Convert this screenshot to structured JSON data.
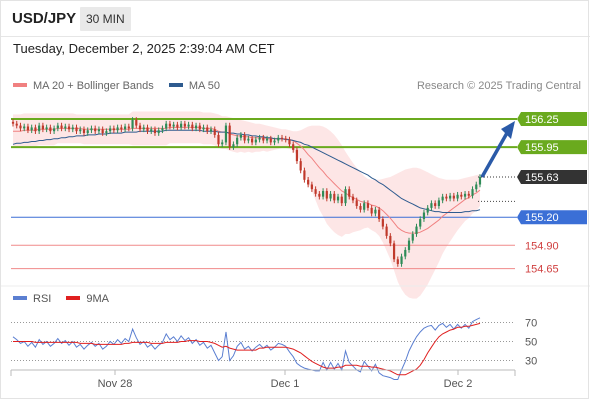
{
  "header": {
    "symbol": "USD/JPY",
    "timeframe": "30 MIN",
    "timestamp": "Tuesday, December 2, 2025 2:39:04 AM CET"
  },
  "legend": {
    "items": [
      {
        "label": "MA 20 + Bollinger Bands",
        "color": "#f08080"
      },
      {
        "label": "MA 50",
        "color": "#2e5b8f"
      }
    ],
    "research": "Research © 2025 Trading Central"
  },
  "rsi_legend": {
    "items": [
      {
        "label": "RSI",
        "color": "#5b7fd1"
      },
      {
        "label": "9MA",
        "color": "#e02020"
      }
    ]
  },
  "colors": {
    "up_candle": "#2e8b57",
    "down_candle": "#c0392b",
    "resistance": "#6aaa1e",
    "support_line": "#e88",
    "pivot": "#3b6fd6",
    "current_tag": "#333333",
    "arrow": "#2a5aa8"
  },
  "chart_data": [
    {
      "type": "candlestick",
      "title": "USD/JPY",
      "x_ticks": [
        "Nov 28",
        "Dec 1",
        "Dec 2"
      ],
      "ylim": [
        154.55,
        156.4
      ],
      "last_price": 155.63,
      "levels": [
        {
          "value": 156.25,
          "label": "156.25",
          "kind": "resistance"
        },
        {
          "value": 155.95,
          "label": "155.95",
          "kind": "resistance"
        },
        {
          "value": 155.63,
          "label": "155.63",
          "kind": "current"
        },
        {
          "value": 155.2,
          "label": "155.20",
          "kind": "pivot"
        },
        {
          "value": 154.9,
          "label": "154.90",
          "kind": "support"
        },
        {
          "value": 154.65,
          "label": "154.65",
          "kind": "support"
        }
      ],
      "close": [
        156.2,
        156.18,
        156.15,
        156.17,
        156.13,
        156.16,
        156.12,
        156.18,
        156.14,
        156.16,
        156.12,
        156.15,
        156.18,
        156.15,
        156.17,
        156.14,
        156.16,
        156.12,
        156.14,
        156.1,
        156.13,
        156.15,
        156.12,
        156.14,
        156.1,
        156.12,
        156.15,
        156.13,
        156.16,
        156.14,
        156.17,
        156.15,
        156.24,
        156.18,
        156.14,
        156.16,
        156.12,
        156.14,
        156.1,
        156.13,
        156.15,
        156.2,
        156.17,
        156.19,
        156.16,
        156.2,
        156.17,
        156.19,
        156.15,
        156.18,
        156.14,
        156.16,
        156.12,
        156.14,
        156.08,
        155.98,
        156.0,
        156.18,
        155.95,
        155.98,
        156.05,
        156.08,
        156.02,
        156.04,
        156.0,
        156.03,
        156.05,
        156.02,
        156.04,
        156.0,
        156.02,
        156.05,
        156.04,
        156.03,
        155.98,
        155.92,
        155.8,
        155.7,
        155.6,
        155.55,
        155.5,
        155.45,
        155.42,
        155.48,
        155.4,
        155.45,
        155.38,
        155.42,
        155.35,
        155.5,
        155.42,
        155.38,
        155.32,
        155.28,
        155.35,
        155.3,
        155.24,
        155.28,
        155.18,
        155.1,
        155.0,
        154.92,
        154.75,
        154.7,
        154.78,
        154.85,
        154.95,
        155.02,
        155.1,
        155.18,
        155.25,
        155.3,
        155.35,
        155.32,
        155.38,
        155.42,
        155.4,
        155.43,
        155.4,
        155.44,
        155.42,
        155.45,
        155.43,
        155.5,
        155.55,
        155.63
      ],
      "ma20": [
        156.12,
        156.12,
        156.12,
        156.13,
        156.13,
        156.13,
        156.13,
        156.14,
        156.14,
        156.14,
        156.14,
        156.14,
        156.15,
        156.15,
        156.15,
        156.15,
        156.15,
        156.15,
        156.15,
        156.14,
        156.14,
        156.14,
        156.14,
        156.14,
        156.14,
        156.14,
        156.14,
        156.14,
        156.14,
        156.14,
        156.14,
        156.14,
        156.15,
        156.15,
        156.15,
        156.15,
        156.15,
        156.15,
        156.15,
        156.15,
        156.15,
        156.15,
        156.16,
        156.16,
        156.16,
        156.16,
        156.16,
        156.16,
        156.16,
        156.16,
        156.16,
        156.15,
        156.15,
        156.15,
        156.14,
        156.12,
        156.11,
        156.11,
        156.09,
        156.08,
        156.07,
        156.07,
        156.06,
        156.06,
        156.05,
        156.05,
        156.05,
        156.05,
        156.04,
        156.04,
        156.04,
        156.04,
        156.04,
        156.04,
        156.03,
        156.02,
        155.99,
        155.96,
        155.92,
        155.87,
        155.83,
        155.78,
        155.73,
        155.69,
        155.64,
        155.6,
        155.56,
        155.52,
        155.48,
        155.46,
        155.43,
        155.41,
        155.39,
        155.37,
        155.36,
        155.35,
        155.33,
        155.32,
        155.3,
        155.27,
        155.23,
        155.19,
        155.14,
        155.09,
        155.06,
        155.04,
        155.03,
        155.03,
        155.03,
        155.04,
        155.06,
        155.08,
        155.11,
        155.14,
        155.17,
        155.21,
        155.24,
        155.27,
        155.3,
        155.33,
        155.36,
        155.39,
        155.41,
        155.44,
        155.46,
        155.49
      ],
      "ma50": [
        155.98,
        155.99,
        155.99,
        156.0,
        156.0,
        156.01,
        156.01,
        156.02,
        156.02,
        156.03,
        156.03,
        156.04,
        156.04,
        156.05,
        156.05,
        156.06,
        156.06,
        156.07,
        156.07,
        156.07,
        156.08,
        156.08,
        156.08,
        156.09,
        156.09,
        156.09,
        156.1,
        156.1,
        156.1,
        156.1,
        156.11,
        156.11,
        156.11,
        156.11,
        156.12,
        156.12,
        156.12,
        156.12,
        156.12,
        156.12,
        156.12,
        156.13,
        156.13,
        156.13,
        156.13,
        156.13,
        156.13,
        156.13,
        156.13,
        156.13,
        156.13,
        156.12,
        156.12,
        156.12,
        156.12,
        156.11,
        156.11,
        156.11,
        156.1,
        156.1,
        156.09,
        156.09,
        156.08,
        156.08,
        156.07,
        156.07,
        156.06,
        156.06,
        156.05,
        156.05,
        156.04,
        156.04,
        156.04,
        156.03,
        156.03,
        156.02,
        156.01,
        156.0,
        155.98,
        155.97,
        155.95,
        155.93,
        155.91,
        155.89,
        155.87,
        155.85,
        155.83,
        155.81,
        155.79,
        155.77,
        155.75,
        155.73,
        155.71,
        155.69,
        155.67,
        155.65,
        155.62,
        155.6,
        155.57,
        155.55,
        155.52,
        155.49,
        155.46,
        155.43,
        155.4,
        155.38,
        155.36,
        155.34,
        155.32,
        155.3,
        155.29,
        155.28,
        155.27,
        155.26,
        155.26,
        155.25,
        155.25,
        155.25,
        155.25,
        155.25,
        155.25,
        155.26,
        155.26,
        155.27,
        155.27,
        155.28
      ],
      "bb_upper": [
        156.3,
        156.3,
        156.3,
        156.31,
        156.31,
        156.31,
        156.31,
        156.31,
        156.31,
        156.31,
        156.31,
        156.31,
        156.31,
        156.31,
        156.31,
        156.31,
        156.31,
        156.3,
        156.3,
        156.3,
        156.3,
        156.3,
        156.3,
        156.3,
        156.3,
        156.3,
        156.3,
        156.3,
        156.3,
        156.3,
        156.3,
        156.3,
        156.33,
        156.33,
        156.33,
        156.33,
        156.33,
        156.33,
        156.33,
        156.33,
        156.33,
        156.33,
        156.33,
        156.33,
        156.33,
        156.33,
        156.33,
        156.33,
        156.33,
        156.33,
        156.33,
        156.32,
        156.32,
        156.32,
        156.31,
        156.3,
        156.28,
        156.28,
        156.27,
        156.26,
        156.25,
        156.24,
        156.23,
        156.22,
        156.21,
        156.2,
        156.2,
        156.19,
        156.18,
        156.17,
        156.16,
        156.15,
        156.14,
        156.14,
        156.13,
        156.12,
        156.12,
        156.13,
        156.15,
        156.17,
        156.18,
        156.18,
        156.18,
        156.17,
        156.15,
        156.12,
        156.08,
        156.03,
        155.97,
        155.9,
        155.84,
        155.78,
        155.73,
        155.68,
        155.64,
        155.61,
        155.6,
        155.6,
        155.6,
        155.61,
        155.62,
        155.63,
        155.65,
        155.67,
        155.69,
        155.71,
        155.72,
        155.73,
        155.73,
        155.72,
        155.7,
        155.68,
        155.66,
        155.64,
        155.62,
        155.61,
        155.6,
        155.6,
        155.6,
        155.6,
        155.61,
        155.62,
        155.63,
        155.64,
        155.65,
        155.66
      ],
      "bb_lower": [
        155.95,
        155.95,
        155.95,
        155.96,
        155.96,
        155.96,
        155.96,
        155.97,
        155.97,
        155.97,
        155.97,
        155.97,
        155.99,
        155.99,
        155.99,
        155.99,
        155.99,
        155.99,
        155.99,
        155.98,
        155.98,
        155.98,
        155.98,
        155.98,
        155.98,
        155.98,
        155.98,
        155.98,
        155.98,
        155.98,
        155.98,
        155.98,
        155.97,
        155.97,
        155.97,
        155.97,
        155.97,
        155.97,
        155.97,
        155.97,
        155.97,
        155.97,
        155.99,
        155.99,
        155.99,
        155.99,
        155.99,
        155.99,
        155.99,
        155.99,
        155.99,
        155.98,
        155.98,
        155.98,
        155.97,
        155.94,
        155.93,
        155.93,
        155.91,
        155.9,
        155.89,
        155.9,
        155.89,
        155.9,
        155.89,
        155.9,
        155.9,
        155.91,
        155.9,
        155.91,
        155.92,
        155.93,
        155.94,
        155.94,
        155.93,
        155.92,
        155.86,
        155.79,
        155.69,
        155.57,
        155.48,
        155.38,
        155.28,
        155.21,
        155.13,
        155.08,
        155.04,
        155.01,
        154.99,
        155.02,
        155.02,
        155.04,
        155.05,
        155.06,
        155.08,
        155.09,
        155.06,
        155.04,
        155.0,
        154.93,
        154.84,
        154.75,
        154.63,
        154.51,
        154.43,
        154.37,
        154.34,
        154.33,
        154.33,
        154.36,
        154.42,
        154.48,
        154.56,
        154.64,
        154.72,
        154.81,
        154.88,
        154.94,
        155.0,
        155.06,
        155.11,
        155.16,
        155.19,
        155.24,
        155.27,
        155.32
      ]
    },
    {
      "type": "line",
      "title": "RSI",
      "ylim": [
        20,
        80
      ],
      "y_ticks": [
        70,
        50,
        30
      ],
      "series": [
        {
          "name": "RSI",
          "values": [
            55,
            52,
            48,
            50,
            45,
            49,
            44,
            52,
            47,
            50,
            45,
            48,
            53,
            48,
            51,
            46,
            50,
            44,
            47,
            42,
            46,
            49,
            45,
            48,
            42,
            45,
            50,
            47,
            52,
            48,
            53,
            50,
            63,
            54,
            47,
            50,
            44,
            47,
            42,
            46,
            49,
            58,
            52,
            55,
            50,
            56,
            51,
            54,
            48,
            52,
            46,
            49,
            43,
            46,
            38,
            30,
            34,
            60,
            30,
            35,
            45,
            49,
            42,
            45,
            40,
            44,
            47,
            43,
            46,
            41,
            44,
            48,
            47,
            45,
            39,
            34,
            27,
            24,
            22,
            21,
            20,
            19,
            19,
            28,
            20,
            28,
            21,
            27,
            20,
            40,
            28,
            24,
            20,
            18,
            29,
            24,
            19,
            26,
            17,
            14,
            13,
            12,
            10,
            10,
            20,
            29,
            40,
            48,
            55,
            60,
            64,
            66,
            67,
            62,
            67,
            69,
            65,
            68,
            63,
            68,
            64,
            68,
            64,
            71,
            73,
            75
          ]
        },
        {
          "name": "9MA",
          "values": [
            50,
            50,
            50,
            50,
            50,
            50,
            49,
            49,
            49,
            49,
            49,
            49,
            49,
            49,
            49,
            49,
            49,
            49,
            48,
            48,
            48,
            48,
            47,
            47,
            47,
            47,
            47,
            47,
            47,
            47,
            48,
            48,
            49,
            49,
            49,
            49,
            49,
            48,
            48,
            48,
            48,
            49,
            49,
            49,
            49,
            50,
            50,
            51,
            51,
            51,
            50,
            50,
            50,
            49,
            48,
            46,
            44,
            45,
            43,
            42,
            41,
            41,
            41,
            41,
            41,
            41,
            43,
            43,
            44,
            44,
            44,
            44,
            44,
            44,
            43,
            42,
            40,
            38,
            35,
            32,
            29,
            27,
            25,
            23,
            22,
            22,
            22,
            23,
            23,
            25,
            25,
            25,
            25,
            24,
            24,
            24,
            23,
            23,
            22,
            21,
            20,
            19,
            17,
            15,
            15,
            15,
            17,
            19,
            21,
            25,
            31,
            38,
            44,
            50,
            55,
            58,
            60,
            62,
            63,
            65,
            65,
            66,
            66,
            67,
            68,
            69
          ]
        }
      ]
    }
  ]
}
